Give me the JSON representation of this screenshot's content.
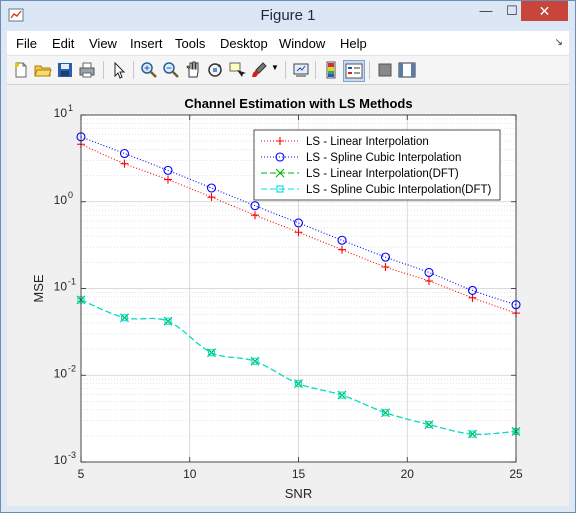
{
  "window": {
    "title": "Figure 1",
    "controls": {
      "minimize": "—",
      "maximize": "☐",
      "close": "✕"
    }
  },
  "menubar": {
    "items": [
      "File",
      "Edit",
      "View",
      "Insert",
      "Tools",
      "Desktop",
      "Window",
      "Help"
    ]
  },
  "toolbar": {
    "icons": [
      "new-figure-icon",
      "open-file-icon",
      "save-icon",
      "print-icon",
      "pointer-icon",
      "zoom-in-icon",
      "zoom-out-icon",
      "pan-icon",
      "rotate-3d-icon",
      "data-cursor-icon",
      "brush-icon",
      "link-plot-icon",
      "colorbar-icon",
      "legend-icon",
      "hide-plot-tools-icon",
      "show-plot-tools-icon"
    ]
  },
  "chart_data": {
    "type": "line",
    "title": "Channel Estimation with LS Methods",
    "xlabel": "SNR",
    "ylabel": "MSE",
    "xlim": [
      5,
      25
    ],
    "ylim": [
      0.001,
      10
    ],
    "yscale": "log",
    "grid": true,
    "legend_position": "top-right",
    "x_ticks": [
      5,
      10,
      15,
      20,
      25
    ],
    "y_ticks": [
      {
        "value": 10,
        "base": "10",
        "exp": "1"
      },
      {
        "value": 1,
        "base": "10",
        "exp": "0"
      },
      {
        "value": 0.1,
        "base": "10",
        "exp": "-1"
      },
      {
        "value": 0.01,
        "base": "10",
        "exp": "-2"
      },
      {
        "value": 0.001,
        "base": "10",
        "exp": "-3"
      }
    ],
    "x": [
      5,
      7,
      9,
      11,
      13,
      15,
      17,
      19,
      21,
      23,
      25
    ],
    "series": [
      {
        "name": "LS - Linear Interpolation",
        "color": "#ff0000",
        "dash": "1,2",
        "marker": "plus",
        "values": [
          4.6,
          2.75,
          1.8,
          1.13,
          0.7,
          0.445,
          0.28,
          0.177,
          0.122,
          0.078,
          0.052
        ]
      },
      {
        "name": "LS - Spline Cubic Interpolation",
        "color": "#0000ff",
        "dash": "1,2",
        "marker": "circle",
        "values": [
          5.6,
          3.6,
          2.3,
          1.44,
          0.9,
          0.57,
          0.36,
          0.23,
          0.153,
          0.095,
          0.065
        ]
      },
      {
        "name": "LS - Linear Interpolation(DFT)",
        "color": "#00b000",
        "dash": "6,3",
        "marker": "x",
        "values": [
          0.074,
          0.046,
          0.042,
          0.0182,
          0.0145,
          0.008,
          0.0059,
          0.0037,
          0.0027,
          0.0021,
          0.00225
        ]
      },
      {
        "name": "LS - Spline Cubic Interpolation(DFT)",
        "color": "#00e0e0",
        "dash": "6,3",
        "marker": "square",
        "values": [
          0.074,
          0.046,
          0.042,
          0.0182,
          0.0145,
          0.008,
          0.0059,
          0.0037,
          0.0027,
          0.0021,
          0.00225
        ]
      }
    ]
  }
}
